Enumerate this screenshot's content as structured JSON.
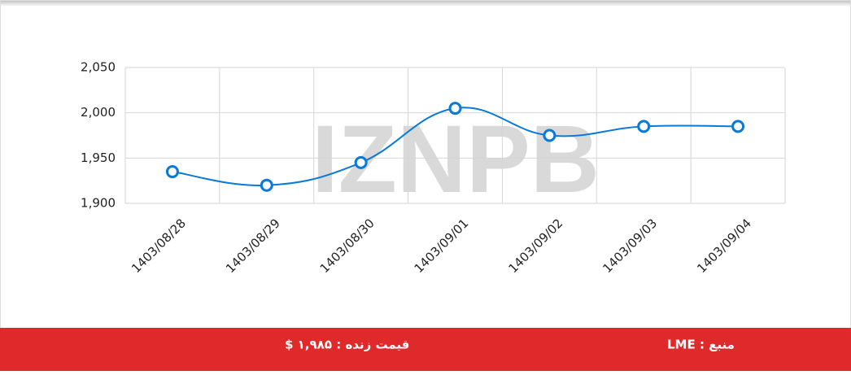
{
  "chart_data": {
    "type": "line",
    "categories": [
      "1403/08/28",
      "1403/08/29",
      "1403/08/30",
      "1403/09/01",
      "1403/09/02",
      "1403/09/03",
      "1403/09/04"
    ],
    "series": [
      {
        "name": null,
        "color": "#0a7ad6",
        "values": [
          1935,
          1920,
          1945,
          2005,
          1975,
          1985,
          1985
        ]
      }
    ],
    "ylim": [
      1900,
      2050
    ],
    "yticks": [
      {
        "value": 1900,
        "label": "1,900"
      },
      {
        "value": 1950,
        "label": "1,950"
      },
      {
        "value": 2000,
        "label": "2,000"
      },
      {
        "value": 2050,
        "label": "2,050"
      }
    ],
    "grid": true,
    "watermark": "IZNPB",
    "footer": {
      "price": "قیمت زنده : ۱,۹۸۵ $",
      "source": "منبع : LME"
    }
  }
}
